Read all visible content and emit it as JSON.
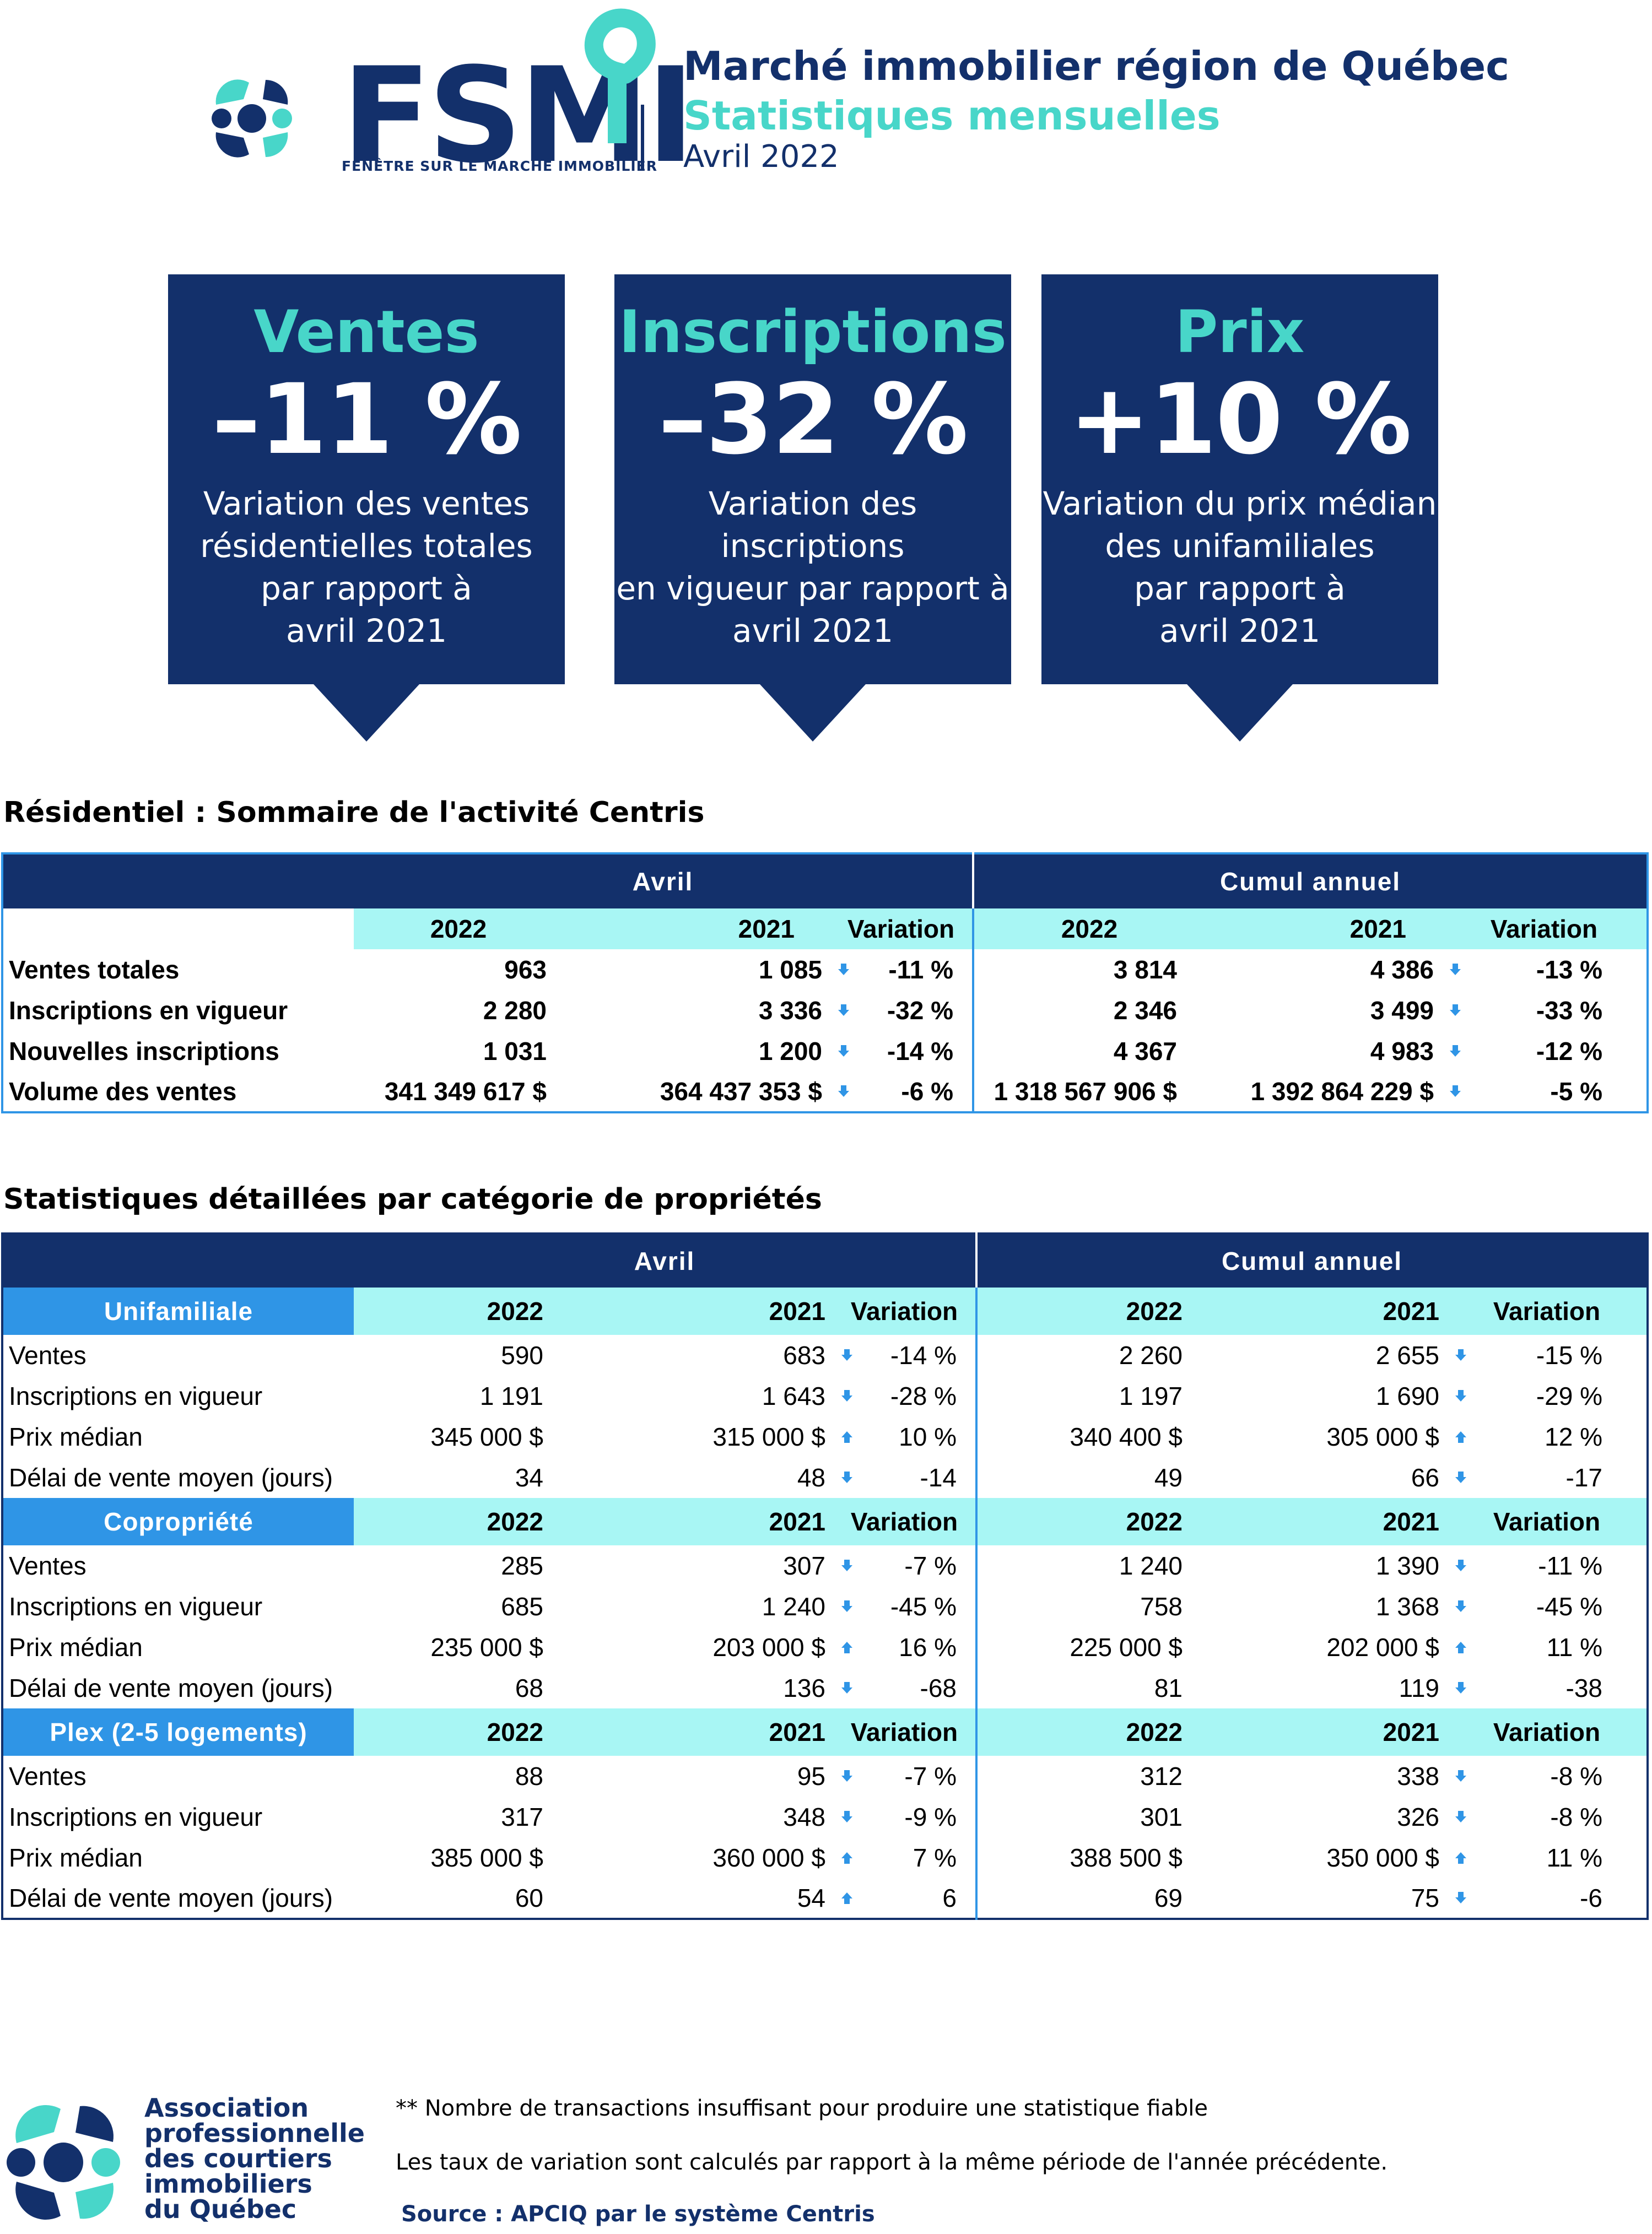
{
  "header": {
    "logo_word": "FSMI",
    "logo_tagline": "FENÊTRE SUR LE MARCHÉ IMMOBILIER",
    "title": "Marché immobilier région de Québec",
    "subtitle": "Statistiques mensuelles",
    "period": "Avril 2022"
  },
  "kpis": [
    {
      "title": "Ventes",
      "value": "–11 %",
      "desc_lines": [
        "Variation des ventes",
        "résidentielles totales",
        "par rapport à",
        "avril 2021"
      ]
    },
    {
      "title": "Inscriptions",
      "value": "–32 %",
      "desc_lines": [
        "Variation des inscriptions",
        "en vigueur par rapport à",
        "avril 2021"
      ]
    },
    {
      "title": "Prix",
      "value": "+10 %",
      "desc_lines": [
        "Variation du prix médian",
        "des unifamiliales",
        "par rapport à",
        "avril 2021"
      ]
    }
  ],
  "summary": {
    "title": "Résidentiel : Sommaire de l'activité Centris",
    "group_headers": [
      "Avril",
      "Cumul annuel"
    ],
    "columns": [
      "2022",
      "2021",
      "Variation",
      "2022",
      "2021",
      "Variation"
    ],
    "rows": [
      {
        "label": "Ventes totales",
        "a2022": "963",
        "a2021": "1 085",
        "a_dir": "down",
        "a_var": "-11 %",
        "c2022": "3 814",
        "c2021": "4 386",
        "c_dir": "down",
        "c_var": "-13 %"
      },
      {
        "label": "Inscriptions en vigueur",
        "a2022": "2 280",
        "a2021": "3 336",
        "a_dir": "down",
        "a_var": "-32 %",
        "c2022": "2 346",
        "c2021": "3 499",
        "c_dir": "down",
        "c_var": "-33 %"
      },
      {
        "label": "Nouvelles inscriptions",
        "a2022": "1 031",
        "a2021": "1 200",
        "a_dir": "down",
        "a_var": "-14 %",
        "c2022": "4 367",
        "c2021": "4 983",
        "c_dir": "down",
        "c_var": "-12 %"
      },
      {
        "label": "Volume des ventes",
        "a2022": "341 349 617  $",
        "a2021": "364 437 353  $",
        "a_dir": "down",
        "a_var": "-6 %",
        "c2022": "1 318 567 906  $",
        "c2021": "1 392 864 229  $",
        "c_dir": "down",
        "c_var": "-5 %"
      }
    ]
  },
  "detail": {
    "title": "Statistiques détaillées par catégorie de propriétés",
    "group_headers": [
      "Avril",
      "Cumul annuel"
    ],
    "categories": [
      {
        "name": "Unifamiliale",
        "columns": [
          "2022",
          "2021",
          "Variation",
          "2022",
          "2021",
          "Variation"
        ],
        "rows": [
          {
            "label": "Ventes",
            "a2022": "590",
            "a2021": "683",
            "a_dir": "down",
            "a_var": "-14 %",
            "c2022": "2 260",
            "c2021": "2 655",
            "c_dir": "down",
            "c_var": "-15 %"
          },
          {
            "label": "Inscriptions en vigueur",
            "a2022": "1 191",
            "a2021": "1 643",
            "a_dir": "down",
            "a_var": "-28 %",
            "c2022": "1 197",
            "c2021": "1 690",
            "c_dir": "down",
            "c_var": "-29 %"
          },
          {
            "label": "Prix médian",
            "a2022": "345 000 $",
            "a2021": "315 000 $",
            "a_dir": "up",
            "a_var": "10 %",
            "c2022": "340 400 $",
            "c2021": "305 000 $",
            "c_dir": "up",
            "c_var": "12 %"
          },
          {
            "label": "Délai de vente moyen (jours)",
            "a2022": "34",
            "a2021": "48",
            "a_dir": "down",
            "a_var": "-14",
            "c2022": "49",
            "c2021": "66",
            "c_dir": "down",
            "c_var": "-17"
          }
        ]
      },
      {
        "name": "Copropriété",
        "columns": [
          "2022",
          "2021",
          "Variation",
          "2022",
          "2021",
          "Variation"
        ],
        "rows": [
          {
            "label": "Ventes",
            "a2022": "285",
            "a2021": "307",
            "a_dir": "down",
            "a_var": "-7 %",
            "c2022": "1 240",
            "c2021": "1 390",
            "c_dir": "down",
            "c_var": "-11 %"
          },
          {
            "label": "Inscriptions en vigueur",
            "a2022": "685",
            "a2021": "1 240",
            "a_dir": "down",
            "a_var": "-45 %",
            "c2022": "758",
            "c2021": "1 368",
            "c_dir": "down",
            "c_var": "-45 %"
          },
          {
            "label": "Prix médian",
            "a2022": "235 000 $",
            "a2021": "203 000 $",
            "a_dir": "up",
            "a_var": "16 %",
            "c2022": "225 000 $",
            "c2021": "202 000 $",
            "c_dir": "up",
            "c_var": "11 %"
          },
          {
            "label": "Délai de vente moyen (jours)",
            "a2022": "68",
            "a2021": "136",
            "a_dir": "down",
            "a_var": "-68",
            "c2022": "81",
            "c2021": "119",
            "c_dir": "down",
            "c_var": "-38"
          }
        ]
      },
      {
        "name": "Plex (2-5 logements)",
        "columns": [
          "2022",
          "2021",
          "Variation",
          "2022",
          "2021",
          "Variation"
        ],
        "rows": [
          {
            "label": "Ventes",
            "a2022": "88",
            "a2021": "95",
            "a_dir": "down",
            "a_var": "-7 %",
            "c2022": "312",
            "c2021": "338",
            "c_dir": "down",
            "c_var": "-8 %"
          },
          {
            "label": "Inscriptions en vigueur",
            "a2022": "317",
            "a2021": "348",
            "a_dir": "down",
            "a_var": "-9 %",
            "c2022": "301",
            "c2021": "326",
            "c_dir": "down",
            "c_var": "-8 %"
          },
          {
            "label": "Prix médian",
            "a2022": "385 000 $",
            "a2021": "360 000 $",
            "a_dir": "up",
            "a_var": "7 %",
            "c2022": "388 500 $",
            "c2021": "350 000 $",
            "c_dir": "up",
            "c_var": "11 %"
          },
          {
            "label": "Délai de vente moyen (jours)",
            "a2022": "60",
            "a2021": "54",
            "a_dir": "up",
            "a_var": "6",
            "c2022": "69",
            "c2021": "75",
            "c_dir": "down",
            "c_var": "-6"
          }
        ]
      }
    ]
  },
  "footer": {
    "association_lines": [
      "Association",
      "professionnelle",
      "des courtiers",
      "immobiliers",
      "du Québec"
    ],
    "note1": "** Nombre de transactions insuffisant pour produire une statistique fiable",
    "note2": "Les taux de variation sont calculés par rapport à la même période de l'année précédente.",
    "source": "Source : APCIQ par le système Centris"
  },
  "colors": {
    "navy": "#13306b",
    "teal": "#48d6c9",
    "cyan_header": "#a8f6f4",
    "category_blue": "#2f95e6",
    "arrow_blue": "#2f95e6"
  },
  "icons": {
    "down": "arrow-down-icon",
    "up": "arrow-up-icon"
  }
}
